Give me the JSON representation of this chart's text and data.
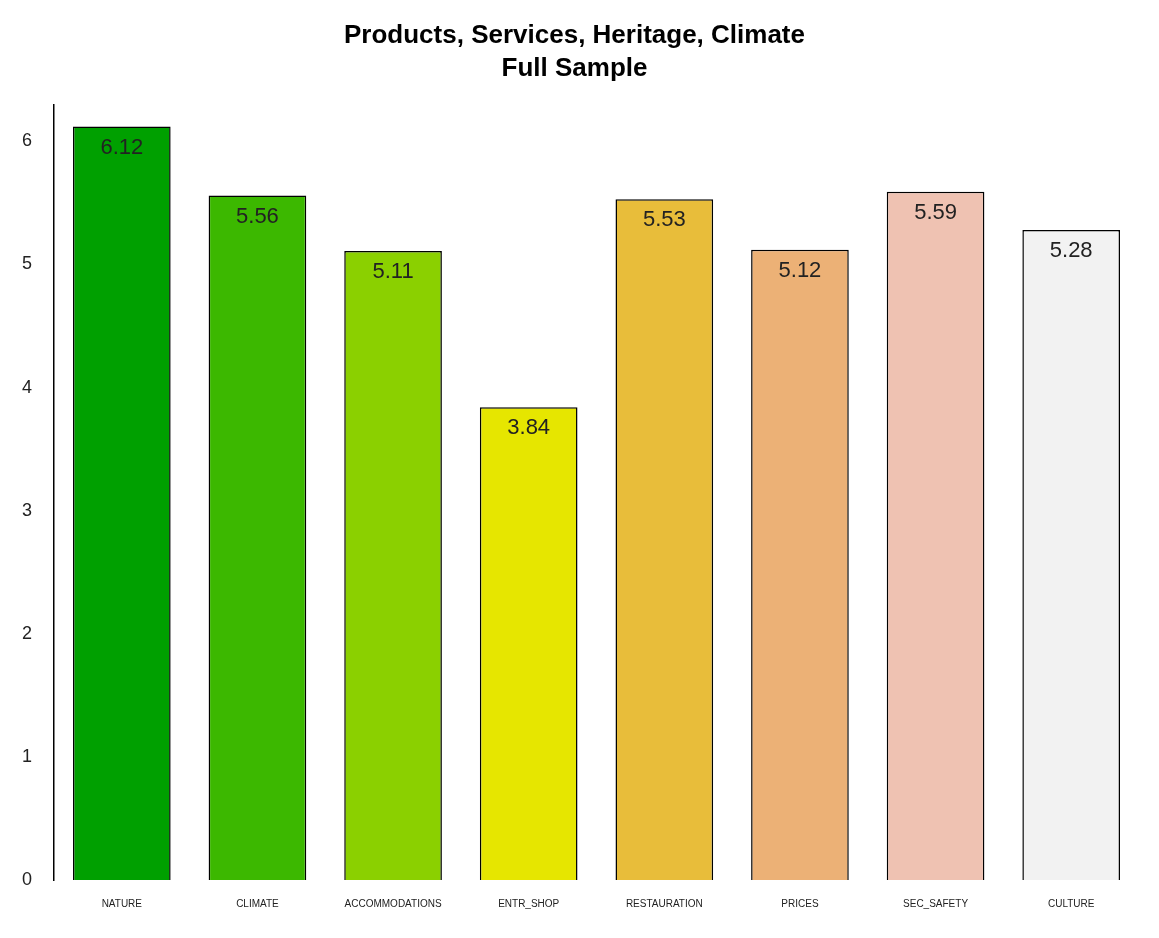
{
  "chart_data": {
    "type": "bar",
    "title": "Products, Services, Heritage, Climate",
    "subtitle": "Full Sample",
    "categories": [
      "NATURE",
      "CLIMATE",
      "ACCOMMODATIONS",
      "ENTR_SHOP",
      "RESTAURATION",
      "PRICES",
      "SEC_SAFETY",
      "CULTURE"
    ],
    "values": [
      6.12,
      5.56,
      5.11,
      3.84,
      5.53,
      5.12,
      5.59,
      5.28
    ],
    "colors": [
      "#00a000",
      "#3cb800",
      "#8bd000",
      "#e6e600",
      "#e8bd3a",
      "#ecb176",
      "#efc2b2",
      "#f2f2f2"
    ],
    "ylim": [
      0,
      6.3
    ],
    "yticks": [
      0,
      1,
      2,
      3,
      4,
      5,
      6
    ],
    "grid": false,
    "legend": false,
    "data_labels": true
  }
}
